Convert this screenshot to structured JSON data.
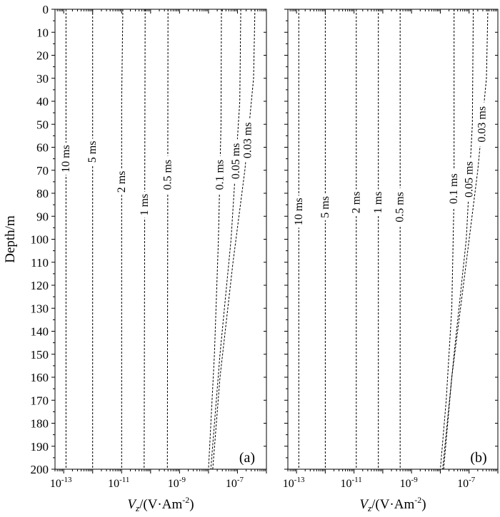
{
  "chart_data": [
    {
      "panel_label": "(a)",
      "type": "line",
      "ylabel": "Depth/m",
      "xlabel_parts": {
        "base": "V",
        "sub": "z",
        "text": "/(V·Am",
        "sup": "-2",
        "close": ")"
      },
      "x_scale": "log",
      "xlim": [
        5e-14,
        1e-06
      ],
      "ylim": [
        200,
        0
      ],
      "y_inverted": true,
      "grid": false,
      "yticks": [
        0,
        10,
        20,
        30,
        40,
        50,
        60,
        70,
        80,
        90,
        100,
        110,
        120,
        130,
        140,
        150,
        160,
        170,
        180,
        190,
        200
      ],
      "xticks": [
        {
          "value": 1e-13,
          "base": "10",
          "exp": "-13"
        },
        {
          "value": 1e-11,
          "base": "10",
          "exp": "-11"
        },
        {
          "value": 1e-09,
          "base": "10",
          "exp": "-9"
        },
        {
          "value": 1e-07,
          "base": "10",
          "exp": "-7"
        }
      ],
      "series": [
        {
          "name": "10 ms",
          "label_depth": 65,
          "points": [
            [
              1.2e-13,
              0
            ],
            [
              1.2e-13,
              200
            ]
          ]
        },
        {
          "name": "5 ms",
          "label_depth": 62,
          "points": [
            [
              1e-12,
              0
            ],
            [
              1e-12,
              200
            ]
          ]
        },
        {
          "name": "2 ms",
          "label_depth": 75,
          "points": [
            [
              1.1e-11,
              0
            ],
            [
              1e-11,
              40
            ],
            [
              1e-11,
              200
            ]
          ]
        },
        {
          "name": "1 ms",
          "label_depth": 85,
          "points": [
            [
              6.5e-11,
              0
            ],
            [
              6e-11,
              200
            ]
          ]
        },
        {
          "name": "0.5 ms",
          "label_depth": 72,
          "points": [
            [
              4e-10,
              0
            ],
            [
              3.8e-10,
              200
            ]
          ]
        },
        {
          "name": "0.1 ms",
          "label_depth": 72,
          "points": [
            [
              2.8e-08,
              0
            ],
            [
              2.7e-08,
              50
            ],
            [
              2.2e-08,
              100
            ],
            [
              1.6e-08,
              150
            ],
            [
              1e-08,
              200
            ]
          ]
        },
        {
          "name": "0.05 ms",
          "label_depth": 66,
          "points": [
            [
              1.3e-07,
              0
            ],
            [
              1.2e-07,
              40
            ],
            [
              6e-08,
              100
            ],
            [
              2.5e-08,
              150
            ],
            [
              1.2e-08,
              200
            ]
          ]
        },
        {
          "name": "0.03 ms",
          "label_depth": 57,
          "points": [
            [
              4e-07,
              0
            ],
            [
              3.6e-07,
              30
            ],
            [
              1.8e-07,
              70
            ],
            [
              7e-08,
              110
            ],
            [
              2.5e-08,
              160
            ],
            [
              1.4e-08,
              200
            ]
          ]
        }
      ]
    },
    {
      "panel_label": "(b)",
      "type": "line",
      "ylabel": "",
      "xlabel_parts": {
        "base": "V",
        "sub": "z",
        "text": "/(V·Am",
        "sup": "-2",
        "close": ")"
      },
      "x_scale": "log",
      "xlim": [
        5e-14,
        1e-06
      ],
      "ylim": [
        200,
        0
      ],
      "y_inverted": true,
      "grid": false,
      "yticks": [],
      "xticks": [
        {
          "value": 1e-13,
          "base": "10",
          "exp": "-13"
        },
        {
          "value": 1e-11,
          "base": "10",
          "exp": "-11"
        },
        {
          "value": 1e-09,
          "base": "10",
          "exp": "-9"
        },
        {
          "value": 1e-07,
          "base": "10",
          "exp": "-7"
        }
      ],
      "series": [
        {
          "name": "10 ms",
          "label_depth": 88,
          "points": [
            [
              1.2e-13,
              0
            ],
            [
              1.2e-13,
              200
            ]
          ]
        },
        {
          "name": "5 ms",
          "label_depth": 86,
          "points": [
            [
              1e-12,
              0
            ],
            [
              1e-12,
              200
            ]
          ]
        },
        {
          "name": "2 ms",
          "label_depth": 84,
          "points": [
            [
              1.2e-11,
              0
            ],
            [
              1.2e-11,
              200
            ]
          ]
        },
        {
          "name": "1 ms",
          "label_depth": 84,
          "points": [
            [
              7e-11,
              0
            ],
            [
              7e-11,
              200
            ]
          ]
        },
        {
          "name": "0.5 ms",
          "label_depth": 86,
          "points": [
            [
              4e-10,
              0
            ],
            [
              4e-10,
              200
            ]
          ]
        },
        {
          "name": "0.1 ms",
          "label_depth": 78,
          "points": [
            [
              3e-08,
              0
            ],
            [
              3e-08,
              80
            ],
            [
              2.5e-08,
              130
            ],
            [
              1.6e-08,
              170
            ],
            [
              1e-08,
              200
            ]
          ]
        },
        {
          "name": "0.05 ms",
          "label_depth": 74,
          "points": [
            [
              1.4e-07,
              0
            ],
            [
              1.3e-07,
              50
            ],
            [
              8e-08,
              100
            ],
            [
              3e-08,
              150
            ],
            [
              1.2e-08,
              200
            ]
          ]
        },
        {
          "name": "0.03 ms",
          "label_depth": 50,
          "points": [
            [
              4.5e-07,
              0
            ],
            [
              4e-07,
              30
            ],
            [
              2e-07,
              70
            ],
            [
              8e-08,
              110
            ],
            [
              2.5e-08,
              160
            ],
            [
              1.3e-08,
              200
            ]
          ]
        }
      ]
    }
  ]
}
